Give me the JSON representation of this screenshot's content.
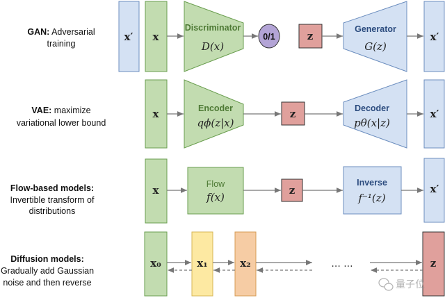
{
  "colors": {
    "green_fill": "#c2dcb0",
    "green_stroke": "#6a9e4f",
    "blue_fill": "#d4e1f3",
    "blue_stroke": "#6c8ebf",
    "red_fill": "#e0a09c",
    "red_stroke": "#333333",
    "purple_fill": "#b3a4d6",
    "yellow_fill": "#fde9a2",
    "yellow_stroke": "#d6b656",
    "orange_fill": "#f6cca4",
    "orange_stroke": "#d79b55",
    "text_green": "#4e7a35",
    "text_blue": "#2b4b7e"
  },
  "rows": {
    "gan": {
      "title": "GAN:",
      "desc1": " Adversarial",
      "desc2": "training",
      "x_prime": "x′",
      "x": "x",
      "disc_name": "Discriminator",
      "disc_fn": "D(x)",
      "output": "0/1",
      "z": "z",
      "gen_name": "Generator",
      "gen_fn": "G(z)",
      "x_out": "x′"
    },
    "vae": {
      "title": "VAE:",
      "desc1": " maximize",
      "desc2": "variational lower bound",
      "x": "x",
      "enc_name": "Encoder",
      "enc_fn": "qϕ(z|x)",
      "z": "z",
      "dec_name": "Decoder",
      "dec_fn": "pθ(x|z)",
      "x_out": "x′"
    },
    "flow": {
      "title": "Flow-based models:",
      "desc1": "Invertible transform of",
      "desc2": "distributions",
      "x": "x",
      "flow_name": "Flow",
      "flow_fn": "f(x)",
      "z": "z",
      "inv_name": "Inverse",
      "inv_fn": "f⁻¹(z)",
      "x_out": "x′"
    },
    "diffusion": {
      "title": "Diffusion models:",
      "desc1": "Gradually add Gaussian",
      "desc2": "noise and then reverse",
      "x0": "x₀",
      "x1": "x₁",
      "x2": "x₂",
      "ellipsis": "··· ···",
      "z": "z"
    }
  },
  "watermark": {
    "text": "量子位",
    "icon": "wechat-icon"
  }
}
